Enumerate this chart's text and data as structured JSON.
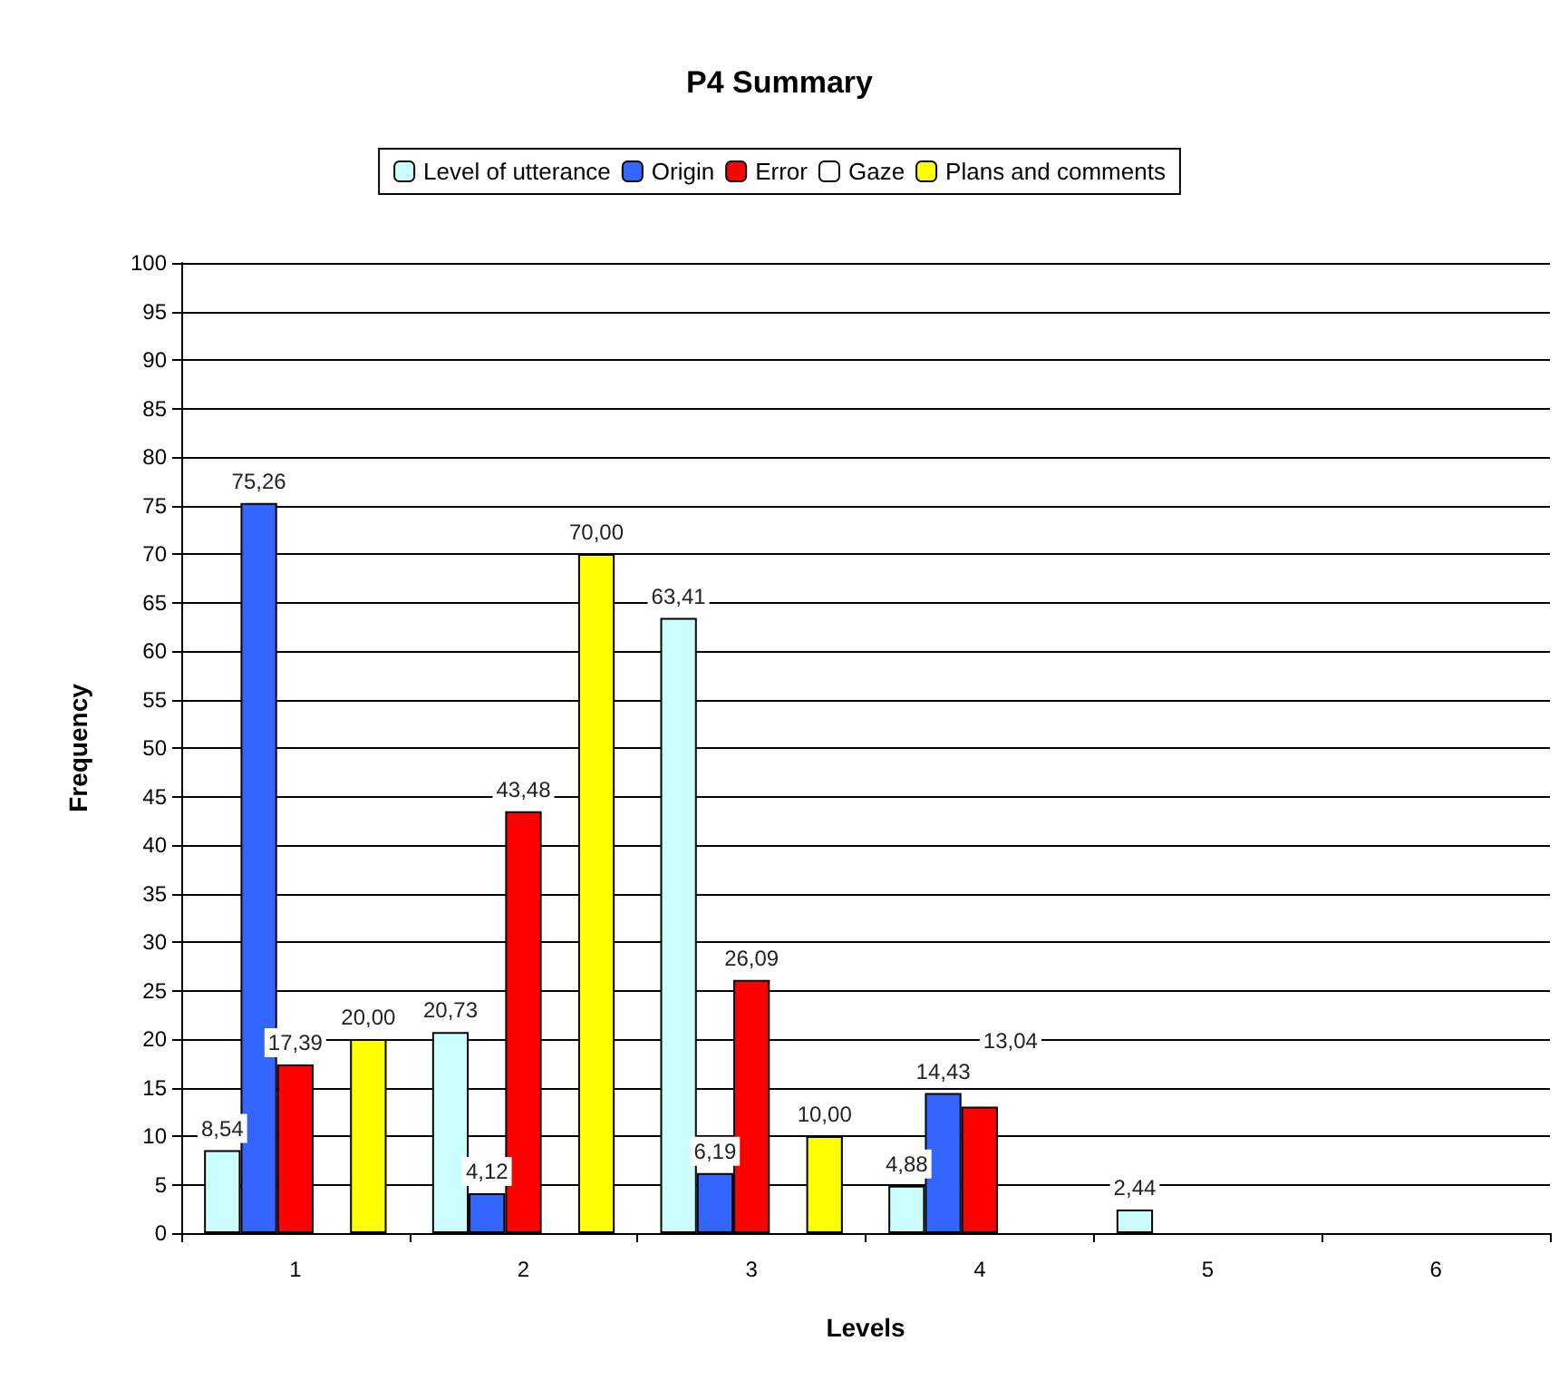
{
  "chart_data": {
    "type": "bar",
    "title": "P4 Summary",
    "xlabel": "Levels",
    "ylabel": "Frequency",
    "categories": [
      "1",
      "2",
      "3",
      "4",
      "5",
      "6"
    ],
    "series": [
      {
        "name": "Level of utterance",
        "color": "#ccffff",
        "values": [
          8.54,
          20.73,
          63.41,
          4.88,
          2.44,
          null
        ],
        "value_labels": [
          "8,54",
          "20,73",
          "63,41",
          "4,88",
          "2,44",
          null
        ]
      },
      {
        "name": "Origin",
        "color": "#3366ff",
        "values": [
          75.26,
          4.12,
          6.19,
          14.43,
          null,
          null
        ],
        "value_labels": [
          "75,26",
          "4,12",
          "6,19",
          "14,43",
          null,
          null
        ]
      },
      {
        "name": "Error",
        "color": "#ff0000",
        "values": [
          17.39,
          43.48,
          26.09,
          13.04,
          null,
          null
        ],
        "value_labels": [
          "17,39",
          "43,48",
          "26,09",
          "13,04",
          null,
          null
        ]
      },
      {
        "name": "Gaze",
        "color": "#ffffff",
        "values": [
          null,
          null,
          null,
          null,
          null,
          null
        ]
      },
      {
        "name": "Plans and comments",
        "color": "#ffff00",
        "values": [
          20.0,
          70.0,
          10.0,
          null,
          null,
          null
        ],
        "value_labels": [
          "20,00",
          "70,00",
          "10,00",
          null,
          null,
          null
        ]
      }
    ],
    "ylim": [
      0,
      100
    ],
    "yticks": [
      0,
      5,
      10,
      15,
      20,
      25,
      30,
      35,
      40,
      45,
      50,
      55,
      60,
      65,
      70,
      75,
      80,
      85,
      90,
      95,
      100
    ],
    "grid": "y",
    "legend": "top"
  }
}
